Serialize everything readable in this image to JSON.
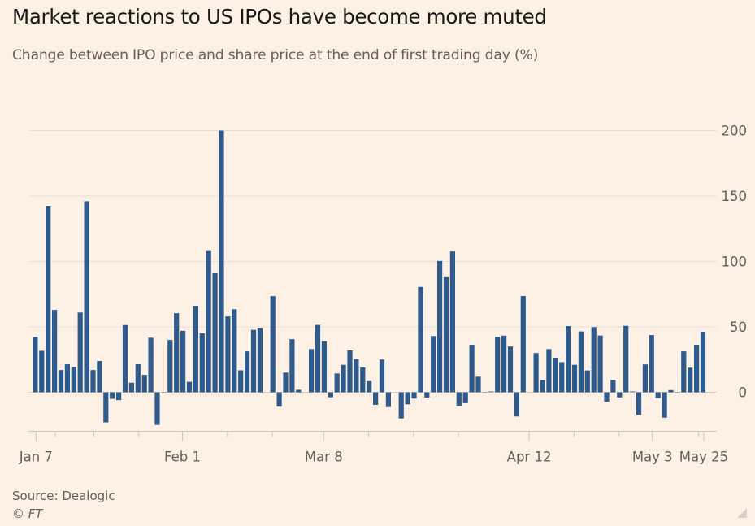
{
  "header": {
    "title": "Market reactions to US IPOs have become more muted",
    "subtitle": "Change between IPO price and share price at the end of first trading day (%)"
  },
  "footer": {
    "source": "Source: Dealogic",
    "copyright": "© FT"
  },
  "colors": {
    "background": "#FDF1E6",
    "bar": "#2E5A8C",
    "gridline": "#E9DED4",
    "axis": "#CFC7BF",
    "tick_label": "#66605C"
  },
  "chart_data": {
    "type": "bar",
    "title": "Market reactions to US IPOs have become more muted",
    "subtitle": "Change between IPO price and share price at the end of first trading day (%)",
    "xlabel": "",
    "ylabel": "Change between IPO price and share price at the end of first trading day (%)",
    "ylim": [
      -30,
      200
    ],
    "yticks": [
      0,
      50,
      100,
      150,
      200
    ],
    "ytick_labels": [
      "0",
      "50",
      "100",
      "150",
      "200"
    ],
    "y_axis_side": "right",
    "grid": true,
    "legend": "none",
    "x_tick_labels": [
      {
        "label": "Jan 7",
        "index": 0.5
      },
      {
        "label": "Feb 1",
        "index": 23.3
      },
      {
        "label": "Mar 8",
        "index": 45.3
      },
      {
        "label": "Apr 12",
        "index": 77.3
      },
      {
        "label": "May 3",
        "index": 96.5
      },
      {
        "label": "May 25",
        "index": 104.5
      }
    ],
    "x_minor_ticks": [
      0.5,
      3.5,
      9.5,
      16.5,
      23.3,
      30.3,
      37.3,
      45.3,
      52.3,
      59.3,
      66.3,
      77.3,
      84.3,
      91.3,
      96.5,
      103.7,
      104.5
    ],
    "values": [
      42.5,
      31.7,
      142,
      63,
      17,
      21.4,
      19.3,
      61,
      146,
      17,
      23.9,
      -23,
      -5,
      -6,
      51.4,
      7.3,
      21.4,
      13.3,
      41.7,
      -25,
      -0.5,
      40,
      60.5,
      47,
      8,
      66,
      45,
      108,
      91,
      200,
      58,
      63.5,
      16.8,
      31.3,
      47.7,
      49,
      0,
      73.5,
      -11,
      15,
      40.6,
      1.9,
      0,
      33,
      51.5,
      39,
      -3.8,
      14.4,
      21,
      32,
      25.4,
      19,
      8.5,
      -9.6,
      25,
      -11.3,
      0,
      -20,
      -9.2,
      -4.8,
      80.6,
      -4,
      43,
      100.4,
      88,
      107.7,
      -10.6,
      -8.3,
      36.3,
      11.9,
      -0.8,
      0.3,
      42.5,
      43.3,
      35,
      -18.5,
      73.6,
      0,
      30,
      9.3,
      33,
      26.4,
      23,
      50.6,
      21,
      46.5,
      16.7,
      49.8,
      43.4,
      -7.2,
      9.5,
      -3.9,
      50.8,
      0.5,
      -17.3,
      21.3,
      43.7,
      -4.4,
      -19.4,
      1.7,
      -0.5,
      31.3,
      18.8,
      36.3,
      46.3
    ]
  }
}
